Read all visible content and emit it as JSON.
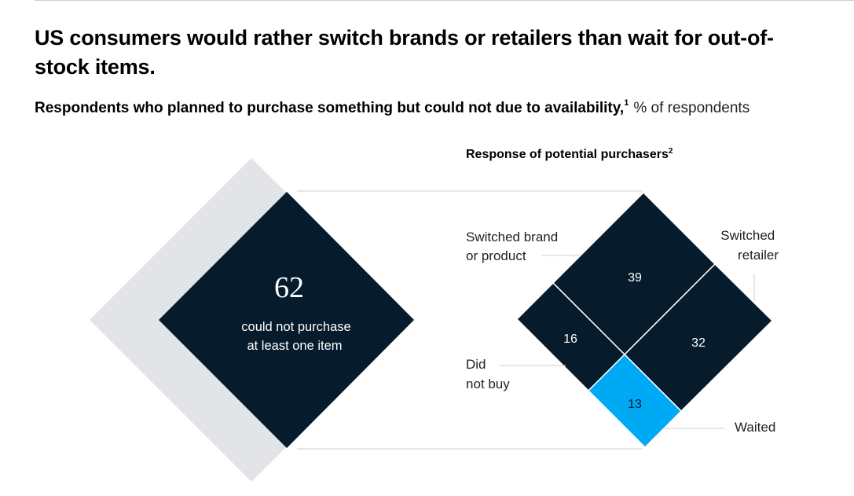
{
  "title": "US consumers would rather switch brands or retailers than wait for out-of-stock items.",
  "subtitle": {
    "text": "Respondents who planned to purchase something but could not due to availability,",
    "footnote": "1",
    "unit": "% of respondents"
  },
  "colors": {
    "dark": "#061c2c",
    "light_gray": "#e2e4e8",
    "accent": "#00a9f4",
    "connector": "#cfcfcf"
  },
  "chart_data": [
    {
      "type": "pie",
      "title": "",
      "values": [
        62
      ],
      "value_label": "62",
      "caption_lines": [
        "could not purchase",
        "at least one item"
      ]
    },
    {
      "type": "pie",
      "title": "Response of potential purchasers",
      "title_footnote": "2",
      "segments": [
        {
          "name": "Switched brand or product",
          "label_lines": [
            "Switched brand",
            "or product"
          ],
          "value": 39
        },
        {
          "name": "Switched retailer",
          "label_lines": [
            "Switched",
            "retailer"
          ],
          "value": 32
        },
        {
          "name": "Did not buy",
          "label_lines": [
            "Did",
            "not buy"
          ],
          "value": 16
        },
        {
          "name": "Waited",
          "label_lines": [
            "Waited"
          ],
          "value": 13
        }
      ]
    }
  ]
}
